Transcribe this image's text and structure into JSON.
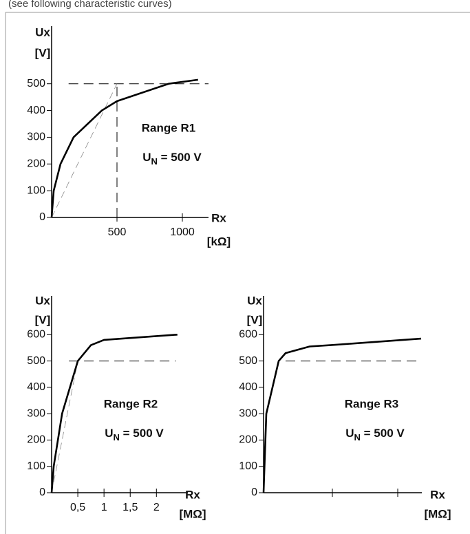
{
  "header": {
    "text": "(see following characteristic curves)"
  },
  "chart_data": [
    {
      "type": "line",
      "ylabel": [
        "Ux",
        "[V]"
      ],
      "xlabel": [
        "Rx",
        "[kΩ]"
      ],
      "xlim": [
        0,
        1200
      ],
      "ylim": [
        0,
        700
      ],
      "xticks": [
        500,
        1000
      ],
      "yticks": [
        0,
        100,
        200,
        300,
        400,
        500
      ],
      "series": [
        {
          "color": "#000000",
          "x": [
            0,
            16,
            68,
            168,
            384,
            500,
            895,
            1120
          ],
          "values": [
            0,
            100,
            200,
            300,
            400,
            435,
            500,
            515
          ]
        }
      ],
      "reference_lines": [
        {
          "color": "#000000",
          "x": [
            130,
            1200
          ],
          "values": [
            500,
            500
          ]
        },
        {
          "color": "#000000",
          "x": [
            500,
            500
          ],
          "values": [
            0,
            500
          ]
        },
        {
          "color": "#888888",
          "x": [
            0,
            500
          ],
          "values": [
            0,
            500
          ]
        }
      ],
      "annotations": [
        {
          "text": "Range R1"
        },
        {
          "main": "U",
          "sub": "N",
          "rest": " = 500 V"
        }
      ]
    },
    {
      "type": "line",
      "ylabel": [
        "Ux",
        "[V]"
      ],
      "xlabel": [
        "Rx",
        "[MΩ]"
      ],
      "xlim": [
        0,
        2.6
      ],
      "ylim": [
        0,
        700
      ],
      "xticks": [
        {
          "value": 0.5,
          "label": "0,5"
        },
        1,
        {
          "value": 1.5,
          "label": "1,5"
        },
        2
      ],
      "yticks": [
        0,
        100,
        200,
        300,
        400,
        500,
        600
      ],
      "series": [
        {
          "color": "#000000",
          "x": [
            0,
            0.04,
            0.2,
            0.5,
            0.75,
            1.0,
            2.4
          ],
          "values": [
            0,
            100,
            300,
            500,
            560,
            580,
            600
          ]
        }
      ],
      "reference_lines": [
        {
          "color": "#000000",
          "x": [
            0.33,
            2.37
          ],
          "values": [
            500,
            500
          ]
        },
        {
          "color": "#888888",
          "x": [
            0,
            0.5
          ],
          "values": [
            0,
            500
          ]
        }
      ],
      "annotations": [
        {
          "text": "Range R2"
        },
        {
          "main": "U",
          "sub": "N",
          "rest": " = 500 V"
        }
      ]
    },
    {
      "type": "line",
      "ylabel": [
        "Ux",
        "[V]"
      ],
      "xlabel": [
        "Rx",
        "[MΩ]"
      ],
      "xlim": [
        0,
        23
      ],
      "ylim": [
        0,
        700
      ],
      "xticks": [
        {
          "value": 10,
          "label": null
        },
        {
          "value": 19.5,
          "label": null
        }
      ],
      "yticks": [
        0,
        100,
        200,
        300,
        400,
        500,
        600
      ],
      "series": [
        {
          "color": "#000000",
          "x": [
            0,
            0.4,
            2.2,
            3.2,
            6.7,
            9.7,
            22.9
          ],
          "values": [
            0,
            300,
            500,
            530,
            555,
            560,
            585
          ]
        }
      ],
      "reference_lines": [
        {
          "color": "#000000",
          "x": [
            3.2,
            23
          ],
          "values": [
            500,
            500
          ]
        }
      ],
      "annotations": [
        {
          "text": "Range R3"
        },
        {
          "main": "U",
          "sub": "N",
          "rest": " = 500 V"
        }
      ]
    }
  ]
}
